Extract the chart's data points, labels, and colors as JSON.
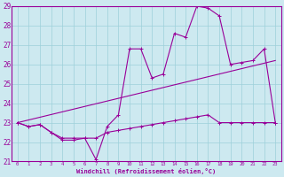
{
  "title": "",
  "xlabel": "Windchill (Refroidissement éolien,°C)",
  "bg_color": "#cde9f0",
  "line_color": "#990099",
  "grid_color": "#9dd0da",
  "xlim": [
    -0.5,
    23.5
  ],
  "ylim": [
    21,
    29
  ],
  "yticks": [
    21,
    22,
    23,
    24,
    25,
    26,
    27,
    28,
    29
  ],
  "xticks": [
    0,
    1,
    2,
    3,
    4,
    5,
    6,
    7,
    8,
    9,
    10,
    11,
    12,
    13,
    14,
    15,
    16,
    17,
    18,
    19,
    20,
    21,
    22,
    23
  ],
  "series1_x": [
    0,
    1,
    2,
    3,
    4,
    5,
    6,
    7,
    8,
    9,
    10,
    11,
    12,
    13,
    14,
    15,
    16,
    17,
    18,
    19,
    20,
    21,
    22,
    23
  ],
  "series1_y": [
    23.0,
    22.8,
    22.9,
    22.5,
    22.1,
    22.1,
    22.2,
    21.1,
    22.8,
    23.4,
    26.8,
    26.8,
    25.3,
    25.5,
    27.6,
    27.4,
    29.0,
    28.9,
    28.5,
    26.0,
    26.1,
    26.2,
    26.8,
    23.0
  ],
  "series2_x": [
    0,
    1,
    2,
    3,
    4,
    5,
    6,
    7,
    8,
    9,
    10,
    11,
    12,
    13,
    14,
    15,
    16,
    17,
    18,
    19,
    20,
    21,
    22,
    23
  ],
  "series2_y": [
    23.0,
    22.8,
    22.9,
    22.5,
    22.2,
    22.2,
    22.2,
    22.2,
    22.5,
    22.6,
    22.7,
    22.8,
    22.9,
    23.0,
    23.1,
    23.2,
    23.3,
    23.4,
    23.0,
    23.0,
    23.0,
    23.0,
    23.0,
    23.0
  ],
  "series3_x": [
    0,
    23
  ],
  "series3_y": [
    23.0,
    26.2
  ]
}
